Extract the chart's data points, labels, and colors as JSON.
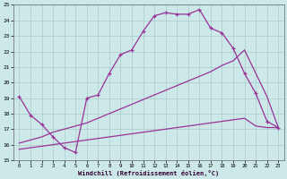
{
  "curve_x": [
    0,
    1,
    2,
    3,
    4,
    5,
    6,
    7,
    8,
    9,
    10,
    11,
    12,
    13,
    14,
    15,
    16,
    17,
    18,
    19,
    20,
    21,
    22,
    23
  ],
  "curve_y": [
    19.1,
    17.9,
    17.3,
    16.5,
    15.8,
    15.5,
    19.0,
    19.2,
    20.6,
    21.8,
    22.1,
    23.3,
    24.3,
    24.5,
    24.4,
    24.4,
    24.7,
    23.5,
    23.2,
    22.2,
    20.6,
    19.3,
    17.5,
    17.1
  ],
  "diag1_x": [
    0,
    1,
    2,
    3,
    4,
    5,
    6,
    7,
    8,
    9,
    10,
    11,
    12,
    13,
    14,
    15,
    16,
    17,
    18,
    19,
    20,
    21,
    22,
    23
  ],
  "diag1_y": [
    16.1,
    16.3,
    16.5,
    16.8,
    17.0,
    17.2,
    17.4,
    17.7,
    18.0,
    18.3,
    18.6,
    18.9,
    19.2,
    19.5,
    19.8,
    20.1,
    20.4,
    20.7,
    21.1,
    21.4,
    22.1,
    20.6,
    19.1,
    17.1
  ],
  "diag2_x": [
    0,
    1,
    2,
    3,
    4,
    5,
    6,
    7,
    8,
    9,
    10,
    11,
    12,
    13,
    14,
    15,
    16,
    17,
    18,
    19,
    20,
    21,
    22,
    23
  ],
  "diag2_y": [
    15.7,
    15.8,
    15.9,
    16.0,
    16.1,
    16.2,
    16.3,
    16.4,
    16.5,
    16.6,
    16.7,
    16.8,
    16.9,
    17.0,
    17.1,
    17.2,
    17.3,
    17.4,
    17.5,
    17.6,
    17.7,
    17.2,
    17.1,
    17.1
  ],
  "color": "#993399",
  "bg_color": "#cce8e8",
  "grid_color": "#aacccc",
  "xlabel": "Windchill (Refroidissement éolien,°C)",
  "ylim": [
    15,
    25
  ],
  "xlim": [
    -0.5,
    23.5
  ],
  "yticks": [
    15,
    16,
    17,
    18,
    19,
    20,
    21,
    22,
    23,
    24,
    25
  ],
  "xticks": [
    0,
    1,
    2,
    3,
    4,
    5,
    6,
    7,
    8,
    9,
    10,
    11,
    12,
    13,
    14,
    15,
    16,
    17,
    18,
    19,
    20,
    21,
    22,
    23
  ]
}
